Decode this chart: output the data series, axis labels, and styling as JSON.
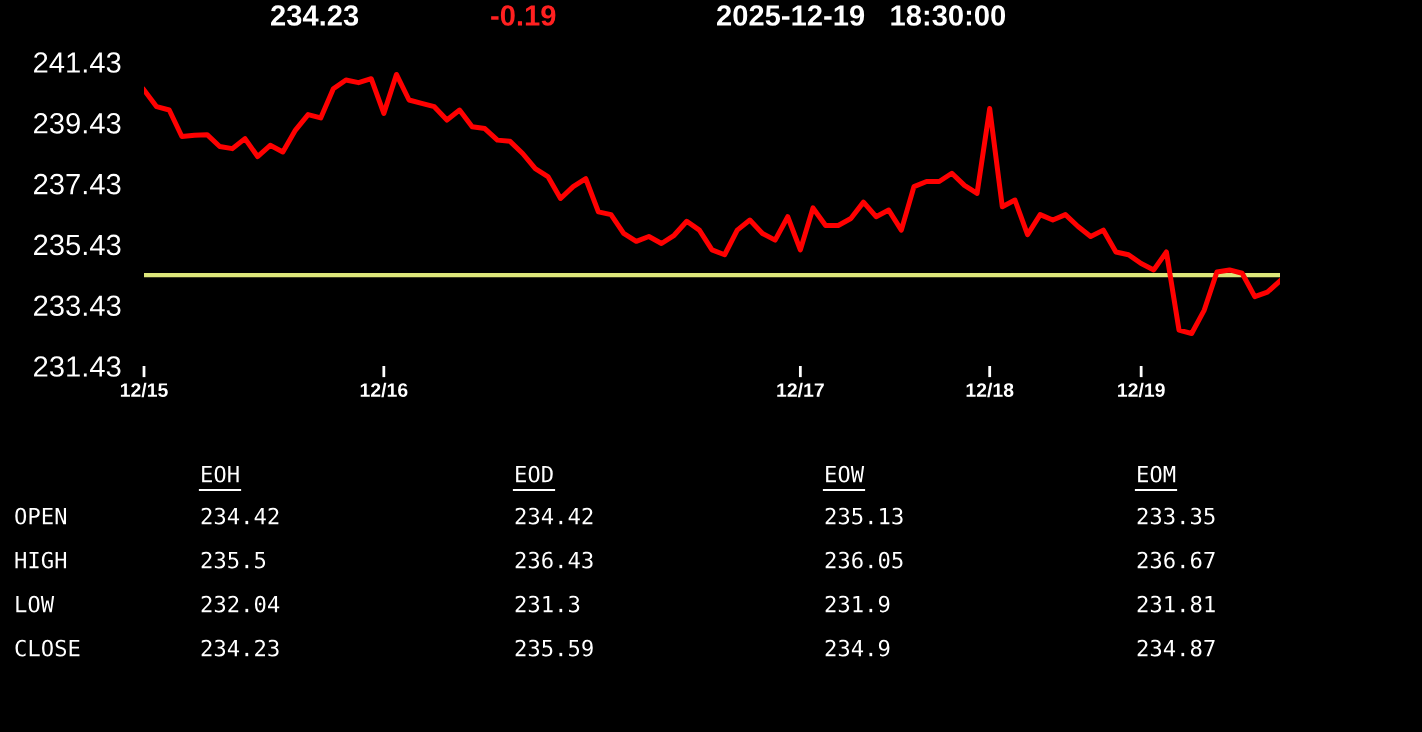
{
  "chart_data": {
    "type": "line",
    "categories": [
      "12/15",
      null,
      null,
      null,
      null,
      null,
      null,
      null,
      null,
      null,
      null,
      null,
      null,
      null,
      null,
      null,
      null,
      null,
      null,
      "12/16",
      null,
      null,
      null,
      null,
      null,
      null,
      null,
      null,
      null,
      null,
      null,
      null,
      null,
      null,
      null,
      null,
      null,
      null,
      null,
      null,
      null,
      null,
      null,
      null,
      null,
      null,
      null,
      null,
      null,
      null,
      null,
      null,
      "12/17",
      null,
      null,
      null,
      null,
      null,
      null,
      null,
      null,
      null,
      null,
      null,
      null,
      null,
      null,
      "12/18",
      null,
      null,
      null,
      null,
      null,
      null,
      null,
      null,
      null,
      null,
      null,
      "12/19",
      null,
      null,
      null,
      null,
      null,
      null,
      null,
      null,
      null,
      null,
      null
    ],
    "series": [
      {
        "color": "#ff0000",
        "values": [
          240.51,
          239.96,
          239.85,
          238.98,
          239.02,
          239.04,
          238.65,
          238.58,
          238.91,
          238.32,
          238.69,
          238.47,
          239.19,
          239.7,
          239.59,
          240.55,
          240.84,
          240.75,
          240.88,
          239.74,
          241.02,
          240.18,
          240.07,
          239.96,
          239.52,
          239.85,
          239.3,
          239.24,
          238.86,
          238.82,
          238.42,
          237.92,
          237.66,
          236.94,
          237.33,
          237.59,
          236.5,
          236.41,
          235.79,
          235.53,
          235.69,
          235.46,
          235.73,
          236.19,
          235.9,
          235.25,
          235.09,
          235.9,
          236.23,
          235.79,
          235.57,
          236.34,
          235.25,
          236.63,
          236.05,
          236.05,
          236.28,
          236.82,
          236.34,
          236.56,
          235.9,
          237.33,
          237.5,
          237.5,
          237.77,
          237.37,
          237.11,
          239.9,
          236.67,
          236.89,
          235.75,
          236.41,
          236.23,
          236.41,
          236.02,
          235.69,
          235.9,
          235.18,
          235.09,
          234.8,
          234.59,
          235.18,
          232.61,
          232.5,
          233.27,
          234.52,
          234.59,
          234.48,
          233.71,
          233.86,
          234.23
        ]
      }
    ],
    "ylim": [
      231.43,
      241.43
    ],
    "yticks": [
      231.43,
      233.43,
      235.43,
      237.43,
      239.43,
      241.43
    ],
    "ref_lines": [
      {
        "axis": "y",
        "value": 234.42,
        "color": "#dde67a"
      }
    ],
    "marker": "none",
    "line_style": "solid",
    "annotations": [
      "234.23",
      "-0.19",
      "2025-12-19   18:30:00",
      "EOH",
      "EOD",
      "EOW",
      "EOM",
      "OPEN",
      "HIGH",
      "LOW",
      "CLOSE",
      "234.42",
      "234.42",
      "235.13",
      "233.35",
      "235.5",
      "236.43",
      "236.05",
      "236.67",
      "232.04",
      "231.3",
      "231.9",
      "231.81",
      "234.23",
      "235.59",
      "234.9",
      "234.87"
    ]
  }
}
